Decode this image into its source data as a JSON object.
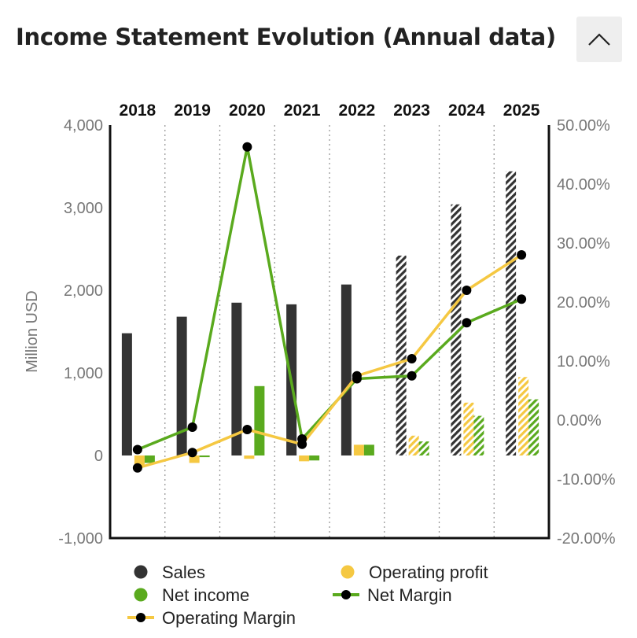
{
  "header": {
    "title": "Income Statement Evolution (Annual data)",
    "collapse_icon": "chevron-up-icon"
  },
  "chart_data": {
    "type": "bar",
    "categories": [
      "2018",
      "2019",
      "2020",
      "2021",
      "2022",
      "2023",
      "2024",
      "2025"
    ],
    "estimated_from_index": 5,
    "ylabel": "Million USD",
    "ylim": [
      -1000,
      4000
    ],
    "y_ticks": [
      "-1,000",
      "0",
      "1,000",
      "2,000",
      "3,000",
      "4,000"
    ],
    "y_tick_values": [
      -1000,
      0,
      1000,
      2000,
      3000,
      4000
    ],
    "y2lim": [
      -20,
      50
    ],
    "y2_ticks": [
      "-20.00%",
      "-10.00%",
      "0.00%",
      "10.00%",
      "20.00%",
      "30.00%",
      "40.00%",
      "50.00%"
    ],
    "y2_tick_values": [
      -20,
      -10,
      0,
      10,
      20,
      30,
      40,
      50
    ],
    "grid": "vertical dotted between categories",
    "legend_position": "bottom",
    "series": [
      {
        "name": "Sales",
        "kind": "bar",
        "axis": "left",
        "color": "#333333",
        "values": [
          1480,
          1680,
          1850,
          1830,
          2070,
          2420,
          3040,
          3440
        ]
      },
      {
        "name": "Operating profit",
        "kind": "bar",
        "axis": "left",
        "color": "#f5c842",
        "values": [
          -120,
          -90,
          -40,
          -70,
          130,
          240,
          640,
          950
        ]
      },
      {
        "name": "Net income",
        "kind": "bar",
        "axis": "left",
        "color": "#5aaa1e",
        "values": [
          -90,
          -20,
          840,
          -60,
          130,
          170,
          480,
          680
        ]
      },
      {
        "name": "Net Margin",
        "kind": "line",
        "axis": "right",
        "color": "#5aaa1e",
        "values": [
          -5.0,
          -1.2,
          46.3,
          -3.2,
          7.0,
          7.5,
          16.5,
          20.5
        ]
      },
      {
        "name": "Operating Margin",
        "kind": "line",
        "axis": "right",
        "color": "#f5c842",
        "values": [
          -8.1,
          -5.5,
          -1.6,
          -4.1,
          7.5,
          10.4,
          22.0,
          28.0
        ]
      }
    ]
  }
}
